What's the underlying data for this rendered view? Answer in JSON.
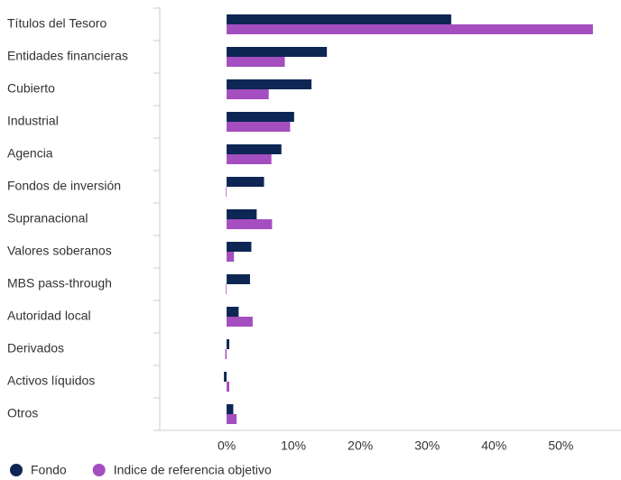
{
  "chart_data": {
    "type": "hbar",
    "categories": [
      "Títulos del Tesoro",
      "Entidades financieras",
      "Cubierto",
      "Industrial",
      "Agencia",
      "Fondos de inversión",
      "Supranacional",
      "Valores soberanos",
      "MBS pass-through",
      "Autoridad local",
      "Derivados",
      "Activos líquidos",
      "Otros"
    ],
    "series": [
      {
        "name": "Fondo",
        "color": "#0d2654",
        "values": [
          33.6,
          15.0,
          12.7,
          10.1,
          8.2,
          5.6,
          4.5,
          3.7,
          3.5,
          1.8,
          0.4,
          -0.4,
          1.0
        ]
      },
      {
        "name": "Indice de referencia objetivo",
        "color": "#a44ec0",
        "values": [
          54.8,
          8.7,
          6.3,
          9.5,
          6.7,
          -0.1,
          6.8,
          1.1,
          -0.1,
          3.9,
          -0.2,
          0.4,
          1.5
        ]
      }
    ],
    "xlim": [
      -10,
      59
    ],
    "xticks": [
      {
        "value": 0,
        "label": "0%"
      },
      {
        "value": 10,
        "label": "10%"
      },
      {
        "value": 20,
        "label": "20%"
      },
      {
        "value": 30,
        "label": "30%"
      },
      {
        "value": 40,
        "label": "40%"
      },
      {
        "value": 50,
        "label": "50%"
      }
    ],
    "legend": "bottom-left"
  }
}
